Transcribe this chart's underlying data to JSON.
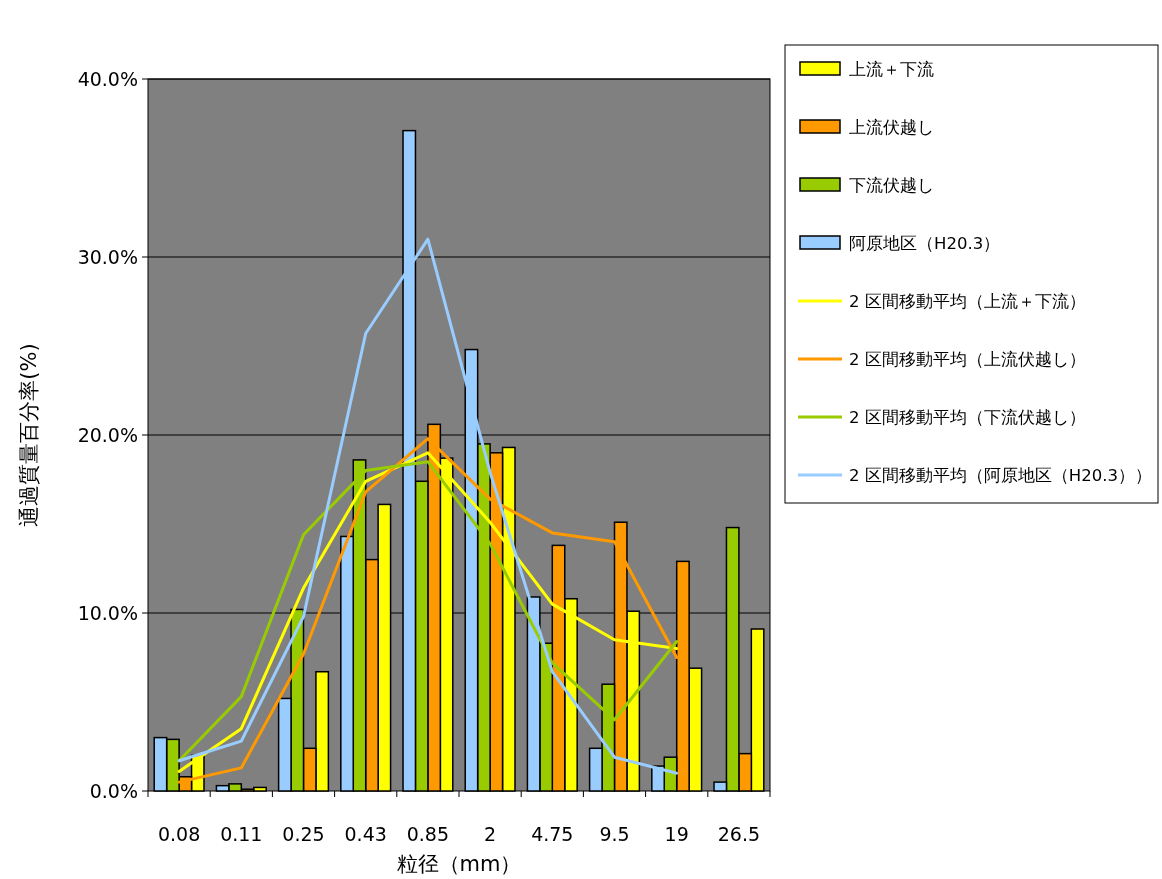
{
  "chart_data": {
    "type": "bar",
    "xlabel": "粒径（mm）",
    "ylabel": "通過質量百分率(%)",
    "categories": [
      "0.08",
      "0.11",
      "0.25",
      "0.43",
      "0.85",
      "2",
      "4.75",
      "9.5",
      "19",
      "26.5"
    ],
    "ylim": [
      0,
      40
    ],
    "yticks": [
      {
        "value": 0,
        "label": "0.0%"
      },
      {
        "value": 10,
        "label": "10.0%"
      },
      {
        "value": 20,
        "label": "20.0%"
      },
      {
        "value": 30,
        "label": "30.0%"
      },
      {
        "value": 40,
        "label": "40.0%"
      }
    ],
    "grid": "y",
    "legend": "top right",
    "series": [
      {
        "name": "上流＋下流",
        "color": "#ffff00",
        "values": [
          2.0,
          0.2,
          6.7,
          16.1,
          18.7,
          19.3,
          10.8,
          10.1,
          6.9,
          9.1
        ]
      },
      {
        "name": "上流伏越し",
        "color": "#ff9900",
        "values": [
          0.8,
          0.1,
          2.4,
          13.0,
          20.6,
          19.0,
          13.8,
          15.1,
          12.9,
          2.1
        ]
      },
      {
        "name": "下流伏越し",
        "color": "#99cc00",
        "values": [
          2.9,
          0.4,
          10.2,
          18.6,
          17.4,
          19.5,
          8.3,
          6.0,
          1.9,
          14.8
        ]
      },
      {
        "name": "阿原地区（H20.3）",
        "color": "#99ccff",
        "values": [
          3.0,
          0.3,
          5.2,
          14.3,
          37.1,
          24.8,
          10.9,
          2.4,
          1.4,
          0.5
        ]
      },
      {
        "name": "2 区間移動平均（上流＋下流）",
        "type": "line",
        "color": "#ffff00",
        "values": [
          1.1,
          3.5,
          11.4,
          17.4,
          19.0,
          15.1,
          10.5,
          8.5,
          8.0,
          null
        ]
      },
      {
        "name": "2 区間移動平均（上流伏越し）",
        "type": "line",
        "color": "#ff9900",
        "values": [
          0.5,
          1.3,
          7.7,
          16.8,
          19.8,
          16.4,
          14.5,
          14.0,
          7.5,
          null
        ]
      },
      {
        "name": "2 区間移動平均（下流伏越し）",
        "type": "line",
        "color": "#99cc00",
        "values": [
          1.7,
          5.3,
          14.4,
          18.0,
          18.5,
          13.9,
          7.2,
          4.0,
          8.4,
          null
        ]
      },
      {
        "name": "2 区間移動平均（阿原地区（H20.3））",
        "type": "line",
        "color": "#99ccff",
        "values": [
          1.7,
          2.8,
          9.8,
          25.7,
          31.0,
          17.9,
          6.7,
          1.9,
          1.0,
          null
        ]
      }
    ]
  }
}
